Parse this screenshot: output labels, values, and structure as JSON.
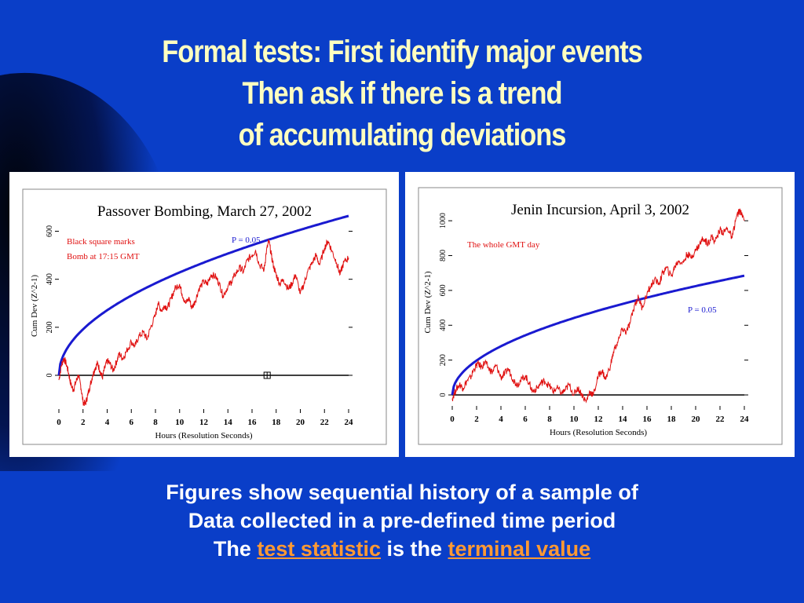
{
  "colors": {
    "background": "#0a3ec8",
    "title": "#ffffc0",
    "link": "#ff9933",
    "curve_p": "#1a1ad0",
    "curve_data": "#e01010"
  },
  "title": {
    "line1": "Formal tests: First identify major events",
    "line2": "Then ask if there is a trend",
    "line3": "of accumulating deviations"
  },
  "caption": {
    "line1": "Figures show sequential history of a sample of",
    "line2": "Data collected in a pre-defined time period",
    "line3_pre": "The",
    "link1": "test statistic",
    "line3_mid": "is the",
    "link2": "terminal value"
  },
  "chart_data": [
    {
      "type": "line",
      "title": "Passover Bombing, March 27, 2002",
      "xlabel": "Hours (Resolution Seconds)",
      "ylabel": "Cum Dev (Z^2-1)",
      "xlim": [
        0,
        24
      ],
      "ylim": [
        -140,
        720
      ],
      "xticks": [
        "0",
        "2",
        "4",
        "6",
        "8",
        "10",
        "12",
        "14",
        "16",
        "18",
        "20",
        "22",
        "24"
      ],
      "yticks": [
        "0",
        "200",
        "400",
        "600"
      ],
      "annotations": [
        "Black square marks",
        "Bomb at 17:15 GMT"
      ],
      "p_label": "P = 0.05",
      "marker": {
        "x": 17.25,
        "y": 0,
        "label": "bomb marker"
      },
      "series": [
        {
          "kind": "envelope",
          "scale": 135.5
        },
        {
          "kind": "data",
          "x": [
            0,
            0.2,
            0.4,
            0.6,
            0.8,
            1.0,
            1.2,
            1.4,
            1.6,
            1.8,
            2.0,
            2.2,
            2.4,
            2.6,
            2.8,
            3.0,
            3.2,
            3.4,
            3.6,
            3.8,
            4.0,
            4.2,
            4.5,
            4.8,
            5.0,
            5.3,
            5.6,
            6.0,
            6.3,
            6.6,
            7.0,
            7.3,
            7.6,
            8.0,
            8.2,
            8.5,
            8.8,
            9.0,
            9.3,
            9.6,
            10.0,
            10.2,
            10.5,
            10.8,
            11.0,
            11.3,
            11.6,
            12.0,
            12.3,
            12.6,
            13.0,
            13.3,
            13.6,
            14.0,
            14.3,
            14.6,
            15.0,
            15.3,
            15.6,
            16.0,
            16.3,
            16.6,
            17.0,
            17.2,
            17.4,
            17.6,
            17.8,
            18.0,
            18.3,
            18.6,
            19.0,
            19.3,
            19.6,
            20.0,
            20.3,
            20.6,
            21.0,
            21.3,
            21.6,
            22.0,
            22.3,
            22.6,
            23.0,
            23.3,
            23.6,
            24.0
          ],
          "y": [
            -20,
            40,
            70,
            50,
            10,
            -40,
            -60,
            -30,
            0,
            -40,
            -110,
            -120,
            -80,
            -40,
            0,
            30,
            50,
            20,
            -10,
            30,
            60,
            50,
            20,
            60,
            90,
            70,
            100,
            140,
            120,
            160,
            180,
            150,
            200,
            250,
            300,
            270,
            290,
            280,
            320,
            360,
            380,
            340,
            300,
            320,
            280,
            310,
            360,
            390,
            380,
            420,
            410,
            380,
            330,
            370,
            390,
            420,
            450,
            430,
            480,
            500,
            520,
            460,
            440,
            520,
            560,
            500,
            450,
            420,
            380,
            400,
            360,
            380,
            420,
            340,
            380,
            430,
            470,
            500,
            460,
            530,
            560,
            520,
            470,
            420,
            470,
            490
          ]
        }
      ]
    },
    {
      "type": "line",
      "title": "Jenin Incursion, April 3, 2002",
      "xlabel": "Hours (Resolution Seconds)",
      "ylabel": "Cum Dev (Z^2-1)",
      "xlim": [
        0,
        24
      ],
      "ylim": [
        -80,
        1110
      ],
      "xticks": [
        "0",
        "2",
        "4",
        "6",
        "8",
        "10",
        "12",
        "14",
        "16",
        "18",
        "20",
        "22",
        "24"
      ],
      "yticks": [
        "0",
        "200",
        "400",
        "600",
        "800",
        "1000"
      ],
      "annotations": [
        "The whole GMT day"
      ],
      "p_label": "P = 0.05",
      "series": [
        {
          "kind": "envelope",
          "scale": 139.7
        },
        {
          "kind": "data",
          "x": [
            0,
            0.3,
            0.6,
            0.9,
            1.2,
            1.5,
            1.8,
            2.1,
            2.4,
            2.7,
            3.0,
            3.3,
            3.6,
            4.0,
            4.3,
            4.6,
            5.0,
            5.3,
            5.6,
            6.0,
            6.3,
            6.6,
            7.0,
            7.3,
            7.6,
            8.0,
            8.3,
            8.6,
            9.0,
            9.3,
            9.6,
            10.0,
            10.3,
            10.6,
            11.0,
            11.3,
            11.6,
            12.0,
            12.3,
            12.6,
            13.0,
            13.3,
            13.6,
            14.0,
            14.3,
            14.6,
            15.0,
            15.3,
            15.6,
            16.0,
            16.3,
            16.6,
            17.0,
            17.3,
            17.6,
            18.0,
            18.3,
            18.6,
            19.0,
            19.3,
            19.6,
            20.0,
            20.3,
            20.6,
            21.0,
            21.3,
            21.6,
            22.0,
            22.3,
            22.6,
            23.0,
            23.3,
            23.6,
            24.0
          ],
          "y": [
            -20,
            30,
            60,
            40,
            80,
            100,
            150,
            180,
            160,
            190,
            150,
            130,
            170,
            100,
            120,
            150,
            90,
            60,
            80,
            110,
            70,
            20,
            40,
            70,
            80,
            50,
            20,
            40,
            10,
            30,
            60,
            0,
            40,
            10,
            -40,
            20,
            0,
            110,
            140,
            90,
            170,
            260,
            300,
            380,
            360,
            410,
            520,
            560,
            500,
            580,
            620,
            660,
            640,
            700,
            730,
            680,
            740,
            770,
            760,
            810,
            790,
            830,
            860,
            900,
            870,
            910,
            880,
            950,
            930,
            960,
            900,
            1010,
            1060,
            1000
          ]
        }
      ]
    }
  ]
}
